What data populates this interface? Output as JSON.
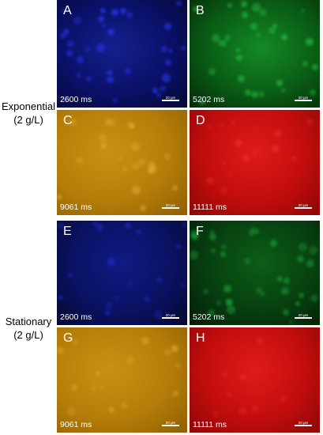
{
  "rows": [
    {
      "label_line1": "Exponential",
      "label_line2": "(2 g/L)"
    },
    {
      "label_line1": "Stationary",
      "label_line2": "(2 g/L)"
    }
  ],
  "panels": [
    {
      "letter": "A",
      "exposure": "2600 ms",
      "scale": "20 µm",
      "channel": "blue"
    },
    {
      "letter": "B",
      "exposure": "5202 ms",
      "scale": "20 µm",
      "channel": "green"
    },
    {
      "letter": "C",
      "exposure": "9061 ms",
      "scale": "20 µm",
      "channel": "yellow"
    },
    {
      "letter": "D",
      "exposure": "11111 ms",
      "scale": "20 µm",
      "channel": "red"
    },
    {
      "letter": "E",
      "exposure": "2600 ms",
      "scale": "20 µm",
      "channel": "blue"
    },
    {
      "letter": "F",
      "exposure": "5202 ms",
      "scale": "20 µm",
      "channel": "green"
    },
    {
      "letter": "G",
      "exposure": "9061 ms",
      "scale": "20 µm",
      "channel": "yellow"
    },
    {
      "letter": "H",
      "exposure": "11111 ms",
      "scale": "20 µm",
      "channel": "red"
    }
  ],
  "colors": {
    "blue_spot": "#2a3cff",
    "green_spot": "#2bd24a",
    "yellow_spot": "#f2c04a",
    "red_spot": "#ff4a3a"
  }
}
